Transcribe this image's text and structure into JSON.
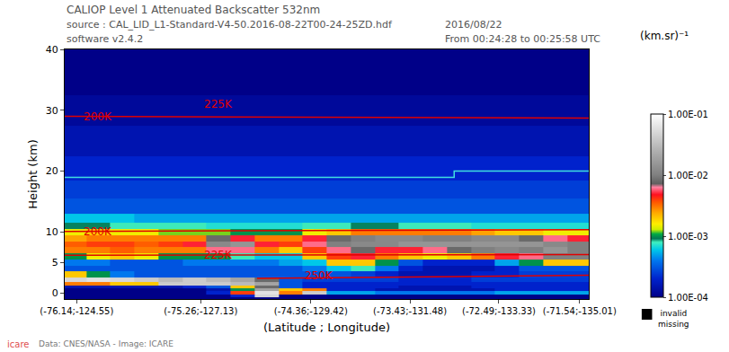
{
  "chart_data": {
    "type": "heatmap",
    "title": "CALIOP Level 1 Attenuated Backscatter 532nm",
    "header": {
      "source": "source : CAL_LID_L1-Standard-V4-50.2016-08-22T00-24-25ZD.hdf",
      "software": "software v2.4.2",
      "date": "2016/08/22",
      "time": "From 00:24:28 to 00:25:58 UTC"
    },
    "footer": "Data: CNES/NASA - Image: ICARE",
    "logo": "icare",
    "xlabel": "(Latitude ; Longitude)",
    "ylabel": "Height (km)",
    "xlim": [
      -124.3,
      -135.2
    ],
    "ylim": [
      -1,
      40
    ],
    "xticks": [
      {
        "value": -124.55,
        "label": "(-76.14;-124.55)"
      },
      {
        "value": -127.13,
        "label": "(-75.26;-127.13)"
      },
      {
        "value": -129.42,
        "label": "(-74.36;-129.42)"
      },
      {
        "value": -131.48,
        "label": "(-73.43;-131.48)"
      },
      {
        "value": -133.33,
        "label": "(-72.49;-133.33)"
      },
      {
        "value": -135.01,
        "label": "(-71.54;-135.01)"
      }
    ],
    "yticks": [
      0,
      5,
      10,
      20,
      30,
      40
    ],
    "colorbar": {
      "title": "(km.sr)⁻¹",
      "range": [
        0.0001,
        0.1
      ],
      "ticks": [
        {
          "value": 0.1,
          "label": "1.00E-01"
        },
        {
          "value": 0.01,
          "label": "1.00E-02"
        },
        {
          "value": 0.001,
          "label": "1.00E-03"
        },
        {
          "value": 0.0001,
          "label": "1.00E-04"
        }
      ]
    },
    "missing_label": [
      "invalid",
      "missing"
    ],
    "x": [
      -124.5,
      -125,
      -125.5,
      -126,
      -126.5,
      -127,
      -127.5,
      -128,
      -128.5,
      -129,
      -129.5,
      -130,
      -130.5,
      -131,
      -131.5,
      -132,
      -132.5,
      -133,
      -133.5,
      -134,
      -134.5,
      -135
    ],
    "y": [
      -0.5,
      0,
      0.5,
      1,
      1.5,
      2,
      3,
      4,
      5,
      6,
      7,
      8,
      9,
      10,
      11,
      12,
      14,
      17,
      20,
      25,
      30,
      35,
      40
    ],
    "cells": [
      [
        0.0001,
        0.0001,
        0.0001,
        0.0001,
        0.0001,
        0.0001,
        0.0001,
        0.0002,
        0.05,
        0.0001,
        0.0001,
        0.0001,
        0.0001,
        0.0001,
        0.0001,
        0.0001,
        0.0001,
        0.0001,
        0.0001,
        0.0001,
        0.0001,
        0.0001
      ],
      [
        0.0001,
        0.0001,
        0.0001,
        0.0001,
        0.0001,
        0.0001,
        0.0002,
        0.004,
        0.06,
        0.003,
        0.04,
        0.0005,
        0.0005,
        0.0004,
        0.0004,
        0.0004,
        0.0004,
        0.0004,
        0.0005,
        0.0005,
        0.0005,
        0.0005
      ],
      [
        0.0001,
        0.0001,
        0.0001,
        0.0001,
        0.0001,
        0.0001,
        0.00015,
        0.001,
        0.02,
        0.002,
        0.003,
        0.0002,
        0.0002,
        0.00015,
        0.00015,
        0.00015,
        0.00015,
        0.00015,
        0.0002,
        0.0002,
        0.0002,
        0.0002
      ],
      [
        0.00015,
        0.00015,
        0.00015,
        0.00015,
        0.00015,
        0.0002,
        0.0003,
        0.002,
        0.008,
        0.0003,
        0.0002,
        0.0002,
        0.0002,
        0.0002,
        0.00015,
        0.00015,
        0.00015,
        0.0002,
        0.0002,
        0.0002,
        0.0002,
        0.0002
      ],
      [
        0.003,
        0.003,
        0.002,
        0.002,
        0.04,
        0.04,
        0.04,
        0.03,
        0.02,
        0.0003,
        0.0002,
        0.0002,
        0.0002,
        0.0002,
        0.0002,
        0.0002,
        0.0002,
        0.0002,
        0.0002,
        0.0002,
        0.0002,
        0.0002
      ],
      [
        0.05,
        0.06,
        0.05,
        0.04,
        0.03,
        0.04,
        0.03,
        0.02,
        0.008,
        0.0003,
        0.00025,
        0.00025,
        0.00025,
        0.00025,
        0.0002,
        0.0002,
        0.0002,
        0.00025,
        0.00025,
        0.00025,
        0.00025,
        0.00025
      ],
      [
        0.002,
        0.001,
        0.0004,
        0.0003,
        0.0003,
        0.0003,
        0.0003,
        0.0003,
        0.0003,
        0.0003,
        0.0003,
        0.0003,
        0.00025,
        0.0002,
        0.00015,
        0.00015,
        0.00015,
        0.0002,
        0.0002,
        0.00025,
        0.00025,
        0.00025
      ],
      [
        0.0003,
        0.0003,
        0.0003,
        0.0003,
        0.0003,
        0.0003,
        0.0003,
        0.0003,
        0.0003,
        0.0003,
        0.0004,
        0.0006,
        0.0008,
        0.0004,
        0.0002,
        0.00015,
        0.00015,
        0.00015,
        0.0002,
        0.0003,
        0.0003,
        0.0003
      ],
      [
        0.0004,
        0.0004,
        0.0003,
        0.0003,
        0.0003,
        0.0004,
        0.0004,
        0.0004,
        0.0004,
        0.0005,
        0.0006,
        0.002,
        0.002,
        0.001,
        0.0003,
        0.0002,
        0.0002,
        0.0002,
        0.0005,
        0.001,
        0.002,
        0.002
      ],
      [
        0.001,
        0.0015,
        0.002,
        0.0015,
        0.001,
        0.001,
        0.001,
        0.0008,
        0.0006,
        0.0006,
        0.002,
        0.004,
        0.005,
        0.003,
        0.002,
        0.0015,
        0.002,
        0.003,
        0.005,
        0.006,
        0.01,
        0.01
      ],
      [
        0.003,
        0.003,
        0.0035,
        0.003,
        0.003,
        0.003,
        0.006,
        0.006,
        0.003,
        0.002,
        0.004,
        0.006,
        0.008,
        0.005,
        0.005,
        0.006,
        0.008,
        0.01,
        0.012,
        0.01,
        0.015,
        0.01
      ],
      [
        0.0035,
        0.004,
        0.004,
        0.0035,
        0.004,
        0.005,
        0.012,
        0.015,
        0.005,
        0.004,
        0.006,
        0.01,
        0.012,
        0.012,
        0.015,
        0.015,
        0.015,
        0.015,
        0.015,
        0.015,
        0.012,
        0.01
      ],
      [
        0.0025,
        0.003,
        0.003,
        0.003,
        0.003,
        0.003,
        0.008,
        0.005,
        0.003,
        0.003,
        0.005,
        0.008,
        0.01,
        0.012,
        0.012,
        0.01,
        0.01,
        0.012,
        0.012,
        0.008,
        0.006,
        0.005
      ],
      [
        0.0015,
        0.002,
        0.0015,
        0.0015,
        0.0012,
        0.0012,
        0.0012,
        0.001,
        0.001,
        0.001,
        0.0015,
        0.002,
        0.003,
        0.003,
        0.003,
        0.003,
        0.003,
        0.0025,
        0.002,
        0.002,
        0.0015,
        0.0015
      ],
      [
        0.0009,
        0.0009,
        0.0008,
        0.0008,
        0.0008,
        0.0008,
        0.0007,
        0.0007,
        0.0007,
        0.0007,
        0.0008,
        0.0008,
        0.0009,
        0.0009,
        0.0008,
        0.0008,
        0.0008,
        0.0007,
        0.0007,
        0.0007,
        0.0007,
        0.0007
      ],
      [
        0.0006,
        0.0006,
        0.0006,
        0.0005,
        0.0005,
        0.0005,
        0.0005,
        0.0005,
        0.0005,
        0.0005,
        0.0005,
        0.0005,
        0.0005,
        0.0005,
        0.0005,
        0.0005,
        0.0005,
        0.0005,
        0.0005,
        0.0005,
        0.0005,
        0.0005
      ],
      [
        0.0003,
        0.0003,
        0.0003,
        0.0003,
        0.0003,
        0.0003,
        0.0003,
        0.0003,
        0.0003,
        0.0003,
        0.0003,
        0.0003,
        0.0003,
        0.0003,
        0.0003,
        0.0003,
        0.0003,
        0.0003,
        0.0003,
        0.0003,
        0.0003,
        0.0003
      ],
      [
        0.00025,
        0.00025,
        0.00025,
        0.00025,
        0.00025,
        0.00025,
        0.00025,
        0.00025,
        0.00025,
        0.00025,
        0.00025,
        0.00025,
        0.00025,
        0.00025,
        0.00025,
        0.00025,
        0.00025,
        0.00025,
        0.00025,
        0.00025,
        0.00025,
        0.00025
      ],
      [
        0.0002,
        0.0002,
        0.0002,
        0.0002,
        0.0002,
        0.0002,
        0.0002,
        0.0002,
        0.0002,
        0.0002,
        0.0002,
        0.0002,
        0.0002,
        0.0002,
        0.0002,
        0.0002,
        0.0002,
        0.0002,
        0.0002,
        0.0002,
        0.0002,
        0.0002
      ],
      [
        0.00015,
        0.00015,
        0.00015,
        0.00015,
        0.00015,
        0.00015,
        0.00015,
        0.00015,
        0.00015,
        0.00015,
        0.00015,
        0.00015,
        0.00015,
        0.00015,
        0.00015,
        0.00015,
        0.00015,
        0.00015,
        0.00015,
        0.00015,
        0.00015,
        0.00015
      ],
      [
        0.00012,
        0.00012,
        0.00012,
        0.00012,
        0.00012,
        0.00012,
        0.00012,
        0.00012,
        0.00012,
        0.00012,
        0.00012,
        0.00012,
        0.00012,
        0.00012,
        0.00012,
        0.00012,
        0.00012,
        0.00012,
        0.00012,
        0.00012,
        0.00012,
        0.00012
      ],
      [
        0.0001,
        0.0001,
        0.0001,
        0.0001,
        0.0001,
        0.0001,
        0.0001,
        0.0001,
        0.0001,
        0.0001,
        0.0001,
        0.0001,
        0.0001,
        0.0001,
        0.0001,
        0.0001,
        0.0001,
        0.0001,
        0.0001,
        0.0001,
        0.0001,
        0.0001
      ],
      [
        0.0001,
        0.0001,
        0.0001,
        0.0001,
        0.0001,
        0.0001,
        0.0001,
        0.0001,
        0.0001,
        0.0001,
        0.0001,
        0.0001,
        0.0001,
        0.0001,
        0.0001,
        0.0001,
        0.0001,
        0.0001,
        0.0001,
        0.0001,
        0.0001,
        0.0001
      ]
    ],
    "lines": [
      {
        "color": "#e00000",
        "x": [
          -124.3,
          -135.2
        ],
        "y": [
          29,
          28.7
        ]
      },
      {
        "color": "#e00000",
        "x": [
          -124.3,
          -135.2
        ],
        "y": [
          10.1,
          10.4
        ]
      },
      {
        "color": "#e00000",
        "x": [
          -124.3,
          -135.2
        ],
        "y": [
          6.2,
          6.3
        ]
      },
      {
        "color": "#e00000",
        "x": [
          -128.3,
          -135.2
        ],
        "y": [
          2.4,
          2.9
        ]
      },
      {
        "color": "#40e0e0",
        "x": [
          -124.3,
          -132.4,
          -132.4,
          -135.2
        ],
        "y": [
          19,
          19,
          20,
          20
        ]
      }
    ],
    "annotations": [
      {
        "text": "200K",
        "x": -125.0,
        "y": 29
      },
      {
        "text": "225K",
        "x": -127.5,
        "y": 31
      },
      {
        "text": "200K",
        "x": -125.0,
        "y": 10.1
      },
      {
        "text": "225K",
        "x": -127.5,
        "y": 6.2
      },
      {
        "text": "250K",
        "x": -129.6,
        "y": 2.8
      }
    ]
  }
}
